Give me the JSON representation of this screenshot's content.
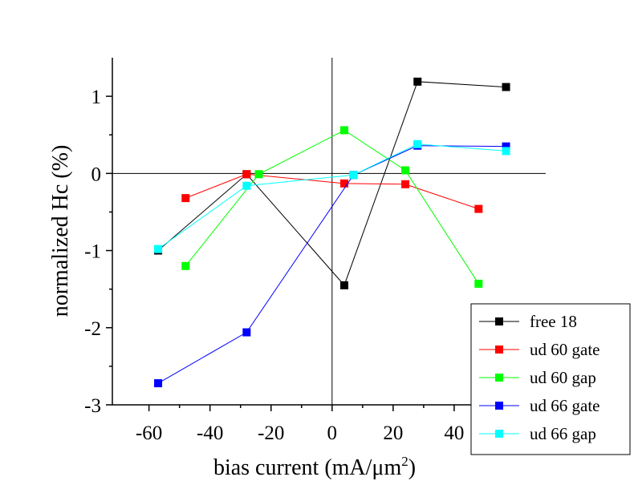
{
  "chart_data": {
    "type": "line",
    "xlabel": "bias current (mA/μm",
    "xlabel_superscript": "2",
    "xlabel_suffix": ")",
    "ylabel": "normalized Hc  (%)",
    "xlim": [
      -72,
      70
    ],
    "ylim": [
      -3,
      1.5
    ],
    "x_ticks": [
      -60,
      -40,
      -20,
      0,
      20,
      40
    ],
    "x_tick_labels": [
      "-60",
      "-40",
      "-20",
      "0",
      "20",
      "40"
    ],
    "y_ticks": [
      1,
      0,
      -1,
      -2,
      -3
    ],
    "y_tick_labels": [
      "1",
      "0",
      "-1",
      "-2",
      "-3"
    ],
    "zero_lines": true,
    "legend_position": "bottom-right",
    "series": [
      {
        "name": "free 18",
        "color": "#000000",
        "marker": "square",
        "x": [
          -57,
          -28,
          4,
          28,
          57
        ],
        "y": [
          -1.0,
          -0.01,
          -1.45,
          1.19,
          1.12
        ]
      },
      {
        "name": "ud 60 gate",
        "color": "#ff0000",
        "marker": "square",
        "x": [
          -48,
          -28,
          4,
          24,
          48
        ],
        "y": [
          -0.32,
          -0.01,
          -0.13,
          -0.14,
          -0.46
        ]
      },
      {
        "name": "ud 60 gap",
        "color": "#00ff00",
        "marker": "square",
        "x": [
          -48,
          -24,
          4,
          24,
          48
        ],
        "y": [
          -1.2,
          -0.01,
          0.56,
          0.04,
          -1.43
        ]
      },
      {
        "name": "ud 66 gate",
        "color": "#0000ff",
        "marker": "square",
        "x": [
          -57,
          -28,
          7,
          28,
          57
        ],
        "y": [
          -2.72,
          -2.06,
          -0.02,
          0.36,
          0.35
        ]
      },
      {
        "name": "ud 66 gap",
        "color": "#00ffff",
        "marker": "square",
        "x": [
          -57,
          -28,
          7,
          28,
          57
        ],
        "y": [
          -0.98,
          -0.16,
          -0.02,
          0.38,
          0.29
        ]
      }
    ]
  }
}
